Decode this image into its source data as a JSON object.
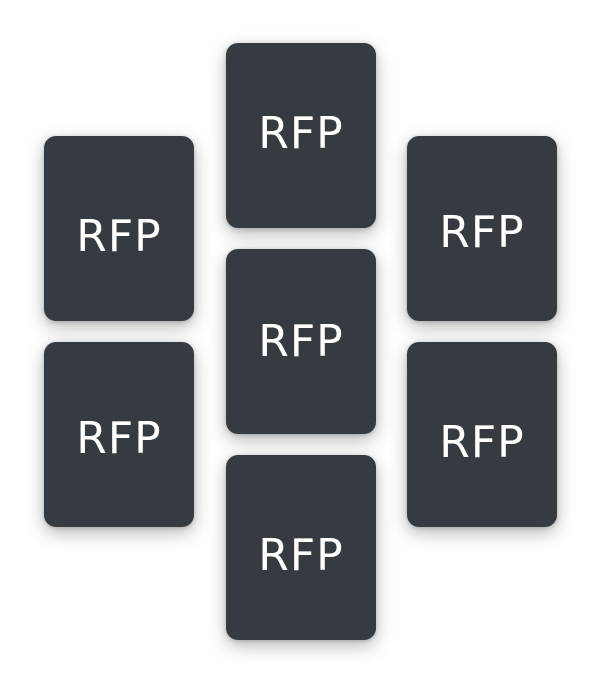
{
  "cards": {
    "left_top": {
      "label": "RFP"
    },
    "left_bottom": {
      "label": "RFP"
    },
    "center_top": {
      "label": "RFP"
    },
    "center_mid": {
      "label": "RFP"
    },
    "center_bottom": {
      "label": "RFP"
    },
    "right_top": {
      "label": "RFP"
    },
    "right_bottom": {
      "label": "RFP"
    }
  },
  "colors": {
    "card_background": "#353b40",
    "card_text": "#ffffff",
    "page_background": "#ffffff"
  }
}
